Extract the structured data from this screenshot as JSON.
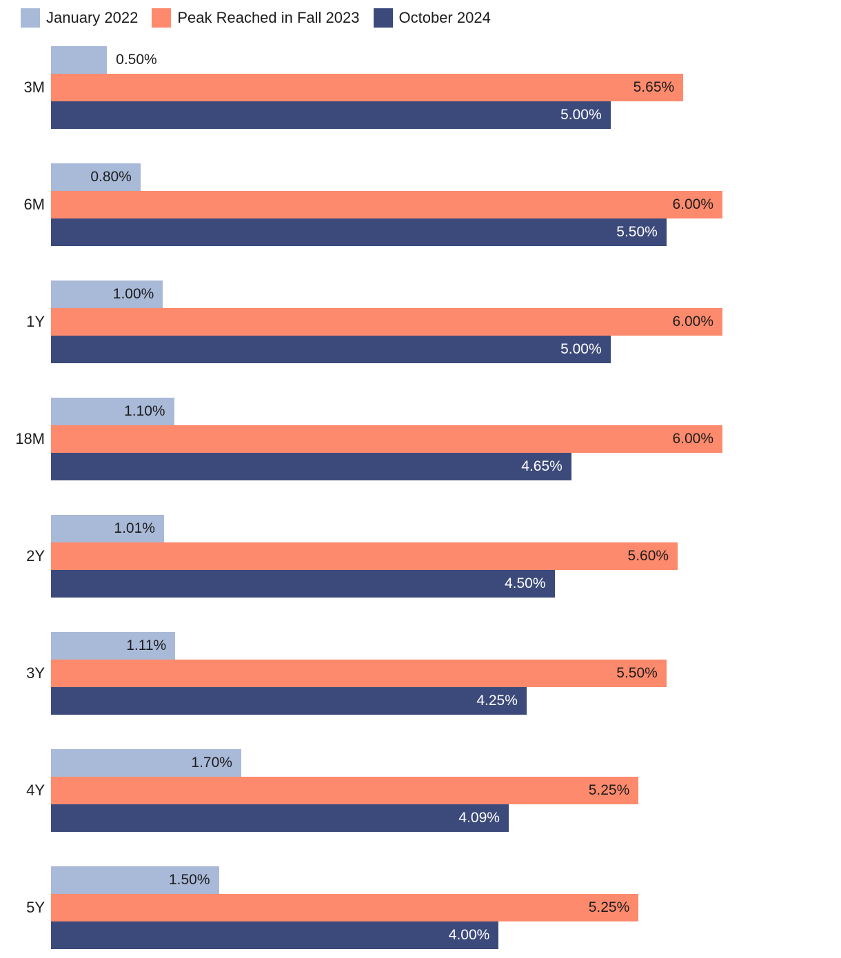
{
  "chart_data": {
    "type": "bar",
    "orientation": "horizontal",
    "title": "",
    "xlabel": "",
    "ylabel": "",
    "xlim": [
      0,
      6.0
    ],
    "grid": false,
    "legend_position": "top-left",
    "value_format": "0.00%",
    "categories": [
      "3M",
      "6M",
      "1Y",
      "18M",
      "2Y",
      "3Y",
      "4Y",
      "5Y"
    ],
    "series": [
      {
        "name": "January 2022",
        "color": "#a9b9d8",
        "label_color": "#1c1c1c",
        "values": [
          0.5,
          0.8,
          1.0,
          1.1,
          1.01,
          1.11,
          1.7,
          1.5
        ],
        "labels": [
          "0.50%",
          "0.80%",
          "1.00%",
          "1.10%",
          "1.01%",
          "1.11%",
          "1.70%",
          "1.50%"
        ]
      },
      {
        "name": "Peak Reached in Fall 2023",
        "color": "#fd8a6d",
        "label_color": "#1c1c1c",
        "values": [
          5.65,
          6.0,
          6.0,
          6.0,
          5.6,
          5.5,
          5.25,
          5.25
        ],
        "labels": [
          "5.65%",
          "6.00%",
          "6.00%",
          "6.00%",
          "5.60%",
          "5.50%",
          "5.25%",
          "5.25%"
        ]
      },
      {
        "name": "October 2024",
        "color": "#3c4a7b",
        "label_color": "#ffffff",
        "values": [
          5.0,
          5.5,
          5.0,
          4.65,
          4.5,
          4.25,
          4.09,
          4.0
        ],
        "labels": [
          "5.00%",
          "5.50%",
          "5.00%",
          "4.65%",
          "4.50%",
          "4.25%",
          "4.09%",
          "4.00%"
        ]
      }
    ],
    "outside_label_color": "#1c1c1c"
  }
}
